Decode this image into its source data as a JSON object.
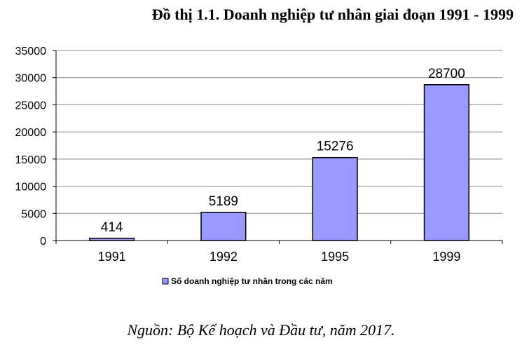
{
  "chart_data": {
    "type": "bar",
    "title": "Đồ thị 1.1. Doanh nghiệp tư nhân giai đoạn 1991 - 1999",
    "categories": [
      "1991",
      "1992",
      "1995",
      "1999"
    ],
    "series": [
      {
        "name": "Số doanh nghiệp tư nhân trong các năm",
        "values": [
          414,
          5189,
          15276,
          28700
        ]
      }
    ],
    "data_labels": [
      "414",
      "5189",
      "15276",
      "28700"
    ],
    "y_ticks": [
      "0",
      "5000",
      "10000",
      "15000",
      "20000",
      "25000",
      "30000",
      "35000"
    ],
    "ylim": [
      0,
      35000
    ],
    "grid": true,
    "legend_position": "bottom",
    "bar_color": "#9999ff",
    "bar_border": "#000000"
  },
  "source_note": "Nguồn: Bộ Kế hoạch và Đầu tư, năm 2017."
}
